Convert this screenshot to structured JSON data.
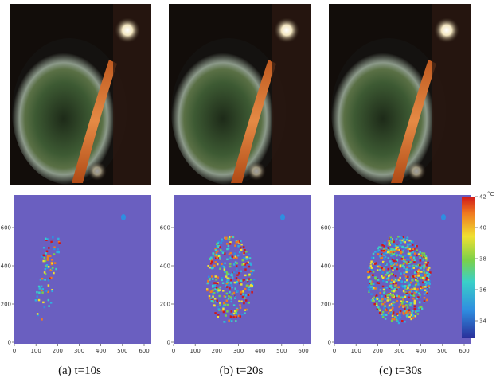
{
  "panels": [
    {
      "caption": "(a) t=10s"
    },
    {
      "caption": "(b) t=20s"
    },
    {
      "caption": "(c) t=30s"
    }
  ],
  "axes": {
    "xticks": [
      0,
      100,
      200,
      300,
      400,
      500,
      600
    ],
    "yticks": [
      0,
      200,
      400,
      600
    ]
  },
  "colorbar": {
    "ticks": [
      34,
      36,
      38,
      40,
      42
    ],
    "unit": "°C"
  }
}
